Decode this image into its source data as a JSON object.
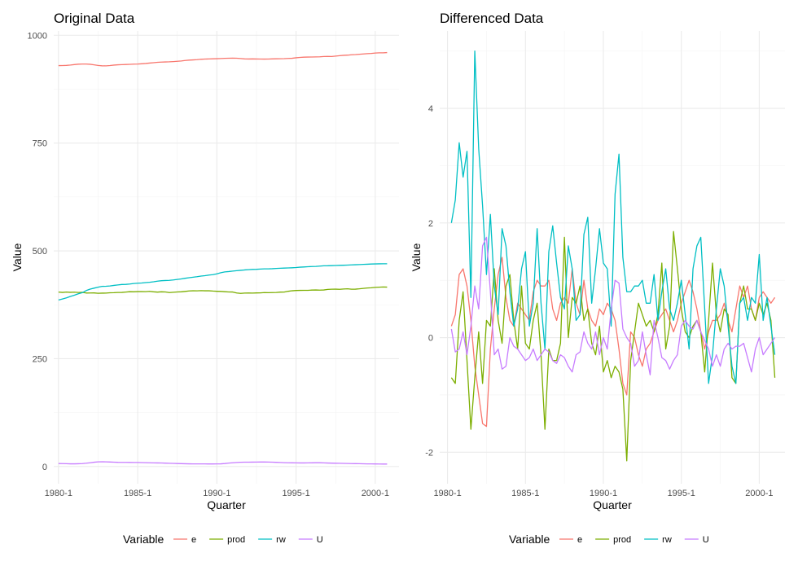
{
  "legend": {
    "title": "Variable",
    "entries": [
      {
        "key": "e",
        "label": "e",
        "color": "#F8766D"
      },
      {
        "key": "prod",
        "label": "prod",
        "color": "#7CAE00"
      },
      {
        "key": "rw",
        "label": "rw",
        "color": "#00BFC4"
      },
      {
        "key": "U",
        "label": "U",
        "color": "#C77CFF"
      }
    ]
  },
  "chart_data": [
    {
      "type": "line",
      "title": "Original Data",
      "xlabel": "Quarter",
      "ylabel": "Value",
      "x_start": 1980.0,
      "x_step": 0.25,
      "xlim": [
        1979.7,
        2001.5
      ],
      "ylim": [
        -40,
        1010
      ],
      "x_ticks": [
        {
          "value": 1980,
          "label": "1980-1"
        },
        {
          "value": 1985,
          "label": "1985-1"
        },
        {
          "value": 1990,
          "label": "1990-1"
        },
        {
          "value": 1995,
          "label": "1995-1"
        },
        {
          "value": 2000,
          "label": "2000-1"
        }
      ],
      "y_ticks": [
        {
          "value": 0,
          "label": "0"
        },
        {
          "value": 250,
          "label": "250"
        },
        {
          "value": 500,
          "label": "500"
        },
        {
          "value": 750,
          "label": "750"
        },
        {
          "value": 1000,
          "label": "1000"
        }
      ],
      "series": [
        {
          "name": "e",
          "values": [
            929.6,
            929.8,
            930.1,
            930.9,
            932.0,
            932.9,
            933.3,
            933.3,
            932.7,
            931.4,
            929.9,
            929.2,
            929.0,
            929.7,
            930.8,
            931.5,
            931.8,
            932.2,
            932.6,
            933.0,
            933.3,
            933.9,
            934.6,
            935.5,
            936.4,
            937.3,
            937.8,
            938.1,
            938.4,
            939.0,
            939.7,
            940.4,
            941.5,
            942.4,
            942.8,
            943.4,
            944.3,
            944.8,
            945.1,
            945.4,
            945.7,
            946.1,
            946.5,
            946.7,
            947.0,
            946.8,
            946.0,
            945.2,
            945.0,
            945.2,
            945.0,
            944.8,
            944.7,
            944.8,
            945.2,
            945.4,
            945.6,
            945.8,
            946.2,
            946.6,
            947.8,
            948.6,
            949.2,
            949.5,
            949.6,
            949.8,
            950.1,
            950.8,
            950.9,
            950.8,
            951.7,
            952.6,
            953.5,
            953.9,
            954.7,
            955.2,
            956.0,
            956.7,
            957.4,
            957.8,
            958.8,
            959.2,
            959.2,
            959.8
          ]
        },
        {
          "name": "prod",
          "values": [
            404.5,
            403.7,
            404.5,
            403.9,
            404.3,
            403.5,
            403.9,
            402.3,
            402.4,
            402.5,
            401.6,
            402.0,
            402.1,
            402.9,
            403.1,
            403.5,
            403.7,
            404.5,
            405.3,
            405.1,
            405.6,
            405.7,
            405.4,
            406.1,
            405.1,
            404.4,
            405.1,
            404.8,
            403.3,
            404.0,
            404.8,
            405.1,
            406.0,
            407.1,
            407.5,
            407.4,
            407.8,
            407.5,
            407.5,
            406.8,
            406.3,
            406.0,
            405.3,
            404.8,
            404.6,
            402.4,
            401.5,
            402.1,
            402.3,
            402.1,
            402.5,
            402.6,
            403.3,
            403.1,
            403.3,
            403.6,
            404.4,
            404.5,
            406.3,
            407.5,
            408.2,
            408.4,
            408.5,
            408.5,
            409.1,
            409.3,
            409.0,
            409.3,
            410.6,
            411.1,
            411.2,
            410.9,
            411.6,
            412.1,
            411.1,
            411.2,
            412.0,
            413.0,
            414.0,
            414.4,
            415.3,
            415.9,
            416.3,
            416.0
          ]
        },
        {
          "name": "rw",
          "values": [
            386.1,
            388.5,
            391.0,
            394.3,
            397.2,
            400.4,
            403.0,
            408.0,
            411.3,
            413.6,
            415.8,
            417.7,
            417.9,
            418.6,
            420.0,
            421.0,
            422.1,
            422.3,
            423.2,
            424.4,
            425.0,
            425.5,
            426.5,
            427.2,
            428.3,
            429.7,
            430.8,
            431.3,
            431.7,
            432.6,
            433.7,
            434.9,
            436.5,
            437.8,
            438.9,
            440.1,
            441.5,
            442.5,
            443.9,
            444.8,
            446.8,
            449.3,
            451.3,
            452.1,
            453.2,
            454.1,
            454.9,
            455.8,
            456.5,
            457.0,
            457.3,
            457.8,
            458.3,
            458.4,
            458.7,
            459.3,
            459.8,
            460.1,
            460.4,
            460.8,
            461.4,
            462.2,
            462.7,
            463.3,
            463.7,
            464.0,
            464.7,
            465.4,
            465.5,
            465.8,
            466.1,
            466.5,
            466.7,
            467.1,
            467.5,
            467.9,
            468.3,
            468.7,
            469.1,
            469.5,
            469.8,
            470.0,
            470.1,
            470.2
          ]
        },
        {
          "name": "U",
          "values": [
            6.9,
            6.7,
            6.5,
            6.2,
            6.2,
            6.4,
            6.8,
            7.6,
            8.7,
            9.9,
            10.8,
            11.0,
            10.7,
            10.4,
            10.1,
            9.7,
            9.6,
            9.6,
            9.5,
            9.4,
            9.3,
            9.1,
            8.8,
            8.6,
            8.4,
            8.3,
            8.1,
            7.8,
            7.5,
            7.2,
            6.9,
            6.6,
            6.4,
            6.2,
            6.1,
            6.0,
            6.0,
            6.0,
            5.9,
            5.9,
            6.0,
            6.2,
            6.9,
            7.9,
            8.7,
            9.4,
            9.8,
            10.0,
            10.1,
            10.2,
            10.3,
            10.4,
            10.4,
            10.3,
            10.0,
            9.7,
            9.3,
            8.9,
            8.6,
            8.5,
            8.4,
            8.3,
            8.3,
            8.4,
            8.5,
            8.7,
            8.7,
            8.4,
            8.0,
            7.8,
            7.6,
            7.4,
            7.2,
            7.0,
            6.8,
            6.6,
            6.5,
            6.3,
            6.1,
            6.0,
            5.9,
            5.8,
            5.7,
            5.7
          ]
        }
      ]
    },
    {
      "type": "line",
      "title": "Differenced Data",
      "xlabel": "Quarter",
      "ylabel": "Value",
      "x_start": 1980.25,
      "x_step": 0.25,
      "xlim": [
        1979.5,
        2001.65
      ],
      "ylim": [
        -2.55,
        5.35
      ],
      "x_ticks": [
        {
          "value": 1980,
          "label": "1980-1"
        },
        {
          "value": 1985,
          "label": "1985-1"
        },
        {
          "value": 1990,
          "label": "1990-1"
        },
        {
          "value": 1995,
          "label": "1995-1"
        },
        {
          "value": 2000,
          "label": "2000-1"
        }
      ],
      "y_ticks": [
        {
          "value": -2,
          "label": "-2"
        },
        {
          "value": 0,
          "label": "0"
        },
        {
          "value": 2,
          "label": "2"
        },
        {
          "value": 4,
          "label": "4"
        }
      ],
      "series": [
        {
          "name": "e",
          "values": [
            0.2,
            0.4,
            1.1,
            1.2,
            0.9,
            0.3,
            -0.5,
            -1.0,
            -1.5,
            -1.55,
            -0.2,
            0.5,
            1.1,
            1.4,
            0.7,
            0.3,
            0.2,
            0.6,
            0.5,
            0.4,
            0.3,
            0.8,
            1.0,
            0.9,
            0.9,
            1.0,
            0.5,
            0.3,
            0.6,
            0.7,
            0.6,
            1.2,
            0.6,
            0.4,
            1.0,
            0.5,
            0.3,
            0.2,
            0.5,
            0.4,
            0.6,
            0.5,
            0.3,
            -0.2,
            -0.8,
            -1.0,
            0.1,
            0.0,
            -0.3,
            -0.5,
            -0.2,
            -0.1,
            0.1,
            0.3,
            0.4,
            0.5,
            0.3,
            0.1,
            0.3,
            0.6,
            0.8,
            1.0,
            0.8,
            0.5,
            0.1,
            -0.2,
            0.1,
            0.3,
            0.3,
            0.4,
            0.6,
            0.3,
            0.1,
            0.5,
            0.9,
            0.7,
            0.9,
            0.5,
            0.3,
            0.7,
            0.8,
            0.7,
            0.6,
            0.7
          ]
        },
        {
          "name": "prod",
          "values": [
            -0.7,
            -0.8,
            0.3,
            0.8,
            -0.4,
            -1.6,
            -0.7,
            0.1,
            -0.8,
            0.3,
            0.2,
            1.2,
            0.3,
            -0.1,
            0.9,
            1.1,
            0.3,
            -0.2,
            0.9,
            -0.1,
            -0.2,
            0.3,
            0.6,
            -0.3,
            -1.6,
            -0.2,
            -0.4,
            -0.4,
            -0.1,
            1.75,
            0.0,
            0.7,
            0.6,
            0.9,
            0.3,
            0.5,
            -0.1,
            -0.3,
            0.2,
            -0.6,
            -0.4,
            -0.7,
            -0.5,
            -0.6,
            -0.9,
            -2.15,
            -0.4,
            0.1,
            0.6,
            0.4,
            0.2,
            0.3,
            0.1,
            0.4,
            1.3,
            -0.2,
            0.2,
            1.85,
            1.2,
            0.5,
            0.1,
            0.0,
            0.2,
            0.3,
            0.1,
            -0.6,
            0.3,
            1.3,
            0.4,
            0.1,
            0.5,
            0.4,
            -0.7,
            -0.8,
            0.6,
            0.9,
            0.5,
            0.5,
            0.3,
            0.6,
            0.4,
            0.6,
            0.3,
            -0.7
          ]
        },
        {
          "name": "rw",
          "values": [
            2.0,
            2.4,
            3.4,
            2.8,
            3.25,
            0.7,
            5.0,
            3.3,
            2.3,
            1.1,
            2.15,
            0.9,
            0.4,
            1.9,
            1.6,
            0.8,
            0.2,
            0.5,
            1.2,
            1.5,
            0.2,
            0.6,
            1.9,
            0.6,
            -0.2,
            1.5,
            1.95,
            1.3,
            0.7,
            0.5,
            1.6,
            1.2,
            0.3,
            0.4,
            1.8,
            2.1,
            0.6,
            1.2,
            1.9,
            1.3,
            1.2,
            0.2,
            2.5,
            3.2,
            1.4,
            0.8,
            0.8,
            0.9,
            0.9,
            1.0,
            0.6,
            0.6,
            1.1,
            0.3,
            0.8,
            1.2,
            0.5,
            0.3,
            0.6,
            1.0,
            0.4,
            -0.2,
            1.2,
            1.6,
            1.75,
            0.5,
            -0.8,
            -0.3,
            0.5,
            1.2,
            0.9,
            0.2,
            -0.5,
            -0.8,
            0.6,
            0.7,
            0.3,
            0.7,
            0.6,
            1.45,
            0.3,
            0.7,
            0.2,
            -0.3
          ]
        },
        {
          "name": "U",
          "values": [
            0.15,
            -0.25,
            -0.2,
            0.1,
            -0.3,
            0.2,
            0.9,
            0.5,
            1.6,
            1.75,
            0.8,
            -0.3,
            -0.2,
            -0.55,
            -0.5,
            0.0,
            -0.15,
            -0.2,
            -0.3,
            -0.4,
            -0.35,
            -0.2,
            -0.4,
            -0.3,
            -0.2,
            -0.25,
            -0.4,
            -0.45,
            -0.3,
            -0.35,
            -0.5,
            -0.6,
            -0.3,
            -0.25,
            0.1,
            -0.1,
            -0.2,
            0.1,
            -0.3,
            0.0,
            -0.2,
            0.5,
            1.0,
            0.95,
            0.15,
            0.0,
            -0.1,
            -0.5,
            -0.4,
            0.1,
            -0.3,
            -0.65,
            0.3,
            0.0,
            -0.35,
            -0.4,
            -0.55,
            -0.4,
            -0.3,
            0.2,
            0.3,
            0.2,
            0.15,
            0.3,
            0.1,
            -0.05,
            -0.2,
            -0.5,
            -0.3,
            -0.5,
            -0.2,
            -0.1,
            -0.2,
            -0.15,
            -0.15,
            -0.1,
            -0.35,
            -0.6,
            -0.2,
            0.0,
            -0.3,
            -0.2,
            -0.1,
            0.0
          ]
        }
      ]
    }
  ]
}
